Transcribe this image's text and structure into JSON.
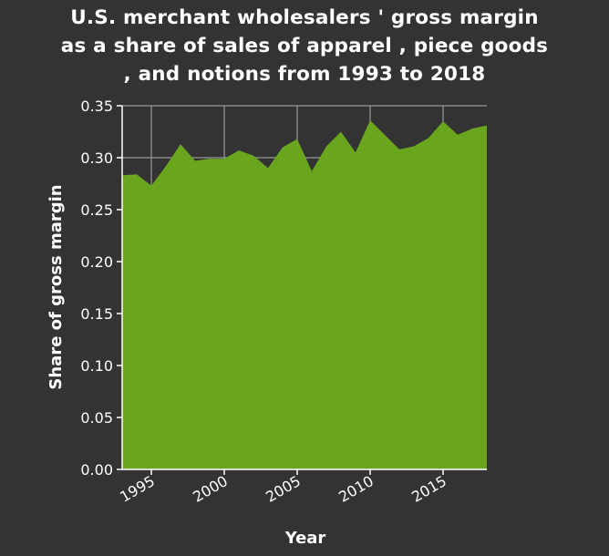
{
  "chart_data": {
    "type": "area",
    "title_lines": [
      "U.S. merchant wholesalers ' gross margin",
      "as a share of sales of apparel , piece goods",
      ", and notions from 1993 to 2018"
    ],
    "xlabel": "Year",
    "ylabel": "Share of gross margin",
    "xlim": [
      1993,
      2018
    ],
    "ylim": [
      0,
      0.35
    ],
    "x_ticks": [
      1995,
      2000,
      2005,
      2010,
      2015
    ],
    "y_ticks": [
      "0.00",
      "0.05",
      "0.10",
      "0.15",
      "0.20",
      "0.25",
      "0.30",
      "0.35"
    ],
    "grid": true,
    "colors": {
      "fill": "#6aa51e",
      "background": "#333333",
      "grid": "#999999",
      "axis": "#ffffff"
    },
    "series": [
      {
        "x": [
          1993,
          1994,
          1995,
          1996,
          1997,
          1998,
          1999,
          2000,
          2001,
          2002,
          2003,
          2004,
          2005,
          2006,
          2007,
          2008,
          2009,
          2010,
          2011,
          2012,
          2013,
          2014,
          2015,
          2016,
          2017,
          2018
        ],
        "values": [
          0.283,
          0.284,
          0.273,
          0.292,
          0.313,
          0.297,
          0.299,
          0.299,
          0.307,
          0.302,
          0.29,
          0.31,
          0.318,
          0.287,
          0.311,
          0.325,
          0.305,
          0.336,
          0.322,
          0.308,
          0.311,
          0.319,
          0.335,
          0.322,
          0.328,
          0.331
        ]
      }
    ]
  }
}
